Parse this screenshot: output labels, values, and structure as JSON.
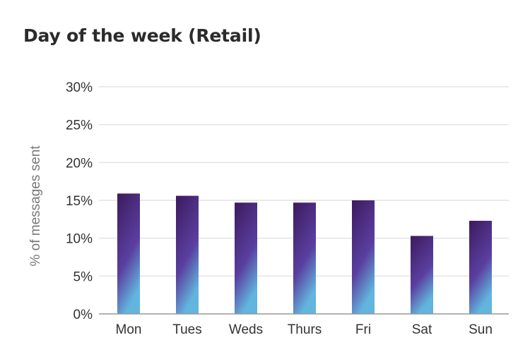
{
  "title": "Day of the week (Retail)",
  "colors": {
    "gridline": "#e4e4e4",
    "baseline": "#999999",
    "bar_top": "#3d1a5e",
    "bar_mid": "#5a3fa0",
    "bar_bottom": "#62b5de"
  },
  "chart_data": {
    "type": "bar",
    "title": "Day of the week (Retail)",
    "xlabel": "",
    "ylabel": "% of messages sent",
    "categories": [
      "Mon",
      "Tues",
      "Weds",
      "Thurs",
      "Fri",
      "Sat",
      "Sun"
    ],
    "values": [
      15.9,
      15.6,
      14.7,
      14.7,
      15.0,
      10.3,
      12.3
    ],
    "unit": "%",
    "ylim": [
      0,
      30
    ],
    "yticks": [
      0,
      5,
      10,
      15,
      20,
      25,
      30
    ],
    "ytick_labels": [
      "0%",
      "5%",
      "10%",
      "15%",
      "20%",
      "25%",
      "30%"
    ],
    "grid": true,
    "legend": "none"
  }
}
